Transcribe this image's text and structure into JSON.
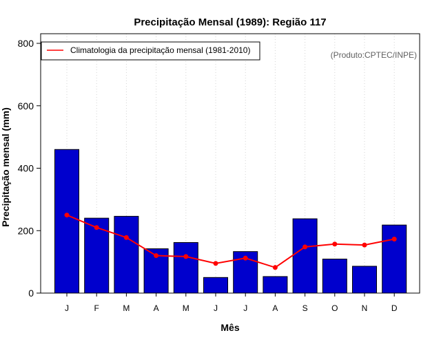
{
  "chart_data": {
    "type": "bar",
    "title": "Precipitação Mensal (1989): Região 117",
    "xlabel": "Mês",
    "ylabel": "Precipitação mensal (mm)",
    "ylim": [
      0,
      800
    ],
    "yticks": [
      0,
      200,
      400,
      600,
      800
    ],
    "grid": "vertical dotted",
    "categories": [
      "J",
      "F",
      "M",
      "A",
      "M",
      "J",
      "J",
      "A",
      "S",
      "O",
      "N",
      "D"
    ],
    "series": [
      {
        "name": "Precipitação mensal (1989)",
        "type": "bar",
        "color": "#0000CD",
        "values": [
          460,
          240,
          246,
          142,
          162,
          50,
          133,
          53,
          238,
          109,
          86,
          218
        ]
      },
      {
        "name": "Climatologia da precipitação mensal (1981-2010)",
        "type": "line",
        "color": "#FF0000",
        "values": [
          250,
          210,
          178,
          120,
          117,
          95,
          112,
          82,
          148,
          157,
          154,
          173
        ]
      }
    ],
    "legend": {
      "position": "top-left",
      "entries": [
        "Climatologia da precipitação mensal (1981-2010)"
      ]
    },
    "annotation": "(Produto:CPTEC/INPE)"
  }
}
